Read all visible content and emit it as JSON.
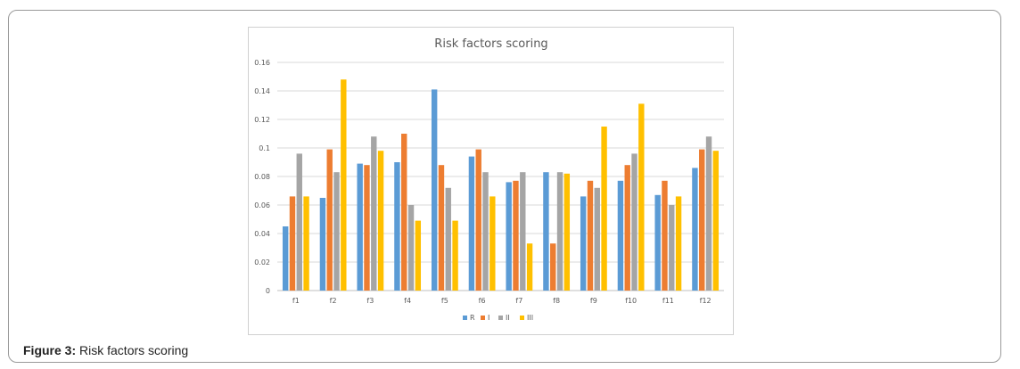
{
  "figure": {
    "caption_label": "Figure 3:",
    "caption_text": "Risk factors scoring"
  },
  "chart_data": {
    "type": "bar",
    "title": "Risk factors scoring",
    "xlabel": "",
    "ylabel": "",
    "ylim": [
      0,
      0.16
    ],
    "yticks": [
      "0",
      "0.02",
      "0.04",
      "0.06",
      "0.08",
      "0.1",
      "0.12",
      "0.14",
      "0.16"
    ],
    "yticks_values": [
      0,
      0.02,
      0.04,
      0.06,
      0.08,
      0.1,
      0.12,
      0.14,
      0.16
    ],
    "grid": true,
    "legend_position": "bottom",
    "categories": [
      "f1",
      "f2",
      "f3",
      "f4",
      "f5",
      "f6",
      "f7",
      "f8",
      "f9",
      "f10",
      "f11",
      "f12"
    ],
    "series": [
      {
        "name": "R",
        "color": "#5b9bd5",
        "values": [
          0.045,
          0.065,
          0.089,
          0.09,
          0.141,
          0.094,
          0.076,
          0.083,
          0.066,
          0.077,
          0.067,
          0.086
        ]
      },
      {
        "name": "I",
        "color": "#ed7d31",
        "values": [
          0.066,
          0.099,
          0.088,
          0.11,
          0.088,
          0.099,
          0.077,
          0.033,
          0.077,
          0.088,
          0.077,
          0.099
        ]
      },
      {
        "name": "II",
        "color": "#a5a5a5",
        "values": [
          0.096,
          0.083,
          0.108,
          0.06,
          0.072,
          0.083,
          0.083,
          0.083,
          0.072,
          0.096,
          0.06,
          0.108
        ]
      },
      {
        "name": "III",
        "color": "#ffc000",
        "values": [
          0.066,
          0.148,
          0.098,
          0.049,
          0.049,
          0.066,
          0.033,
          0.082,
          0.115,
          0.131,
          0.066,
          0.098
        ]
      }
    ]
  }
}
